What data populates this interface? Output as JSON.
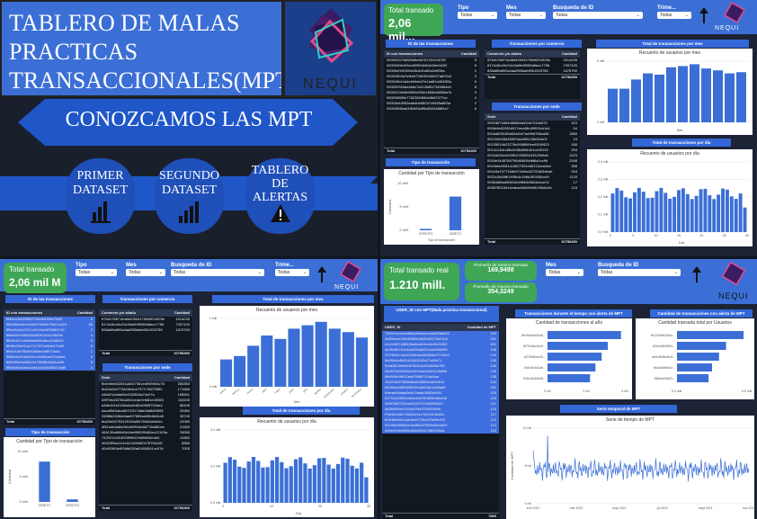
{
  "title_panel": {
    "line1": "TABLERO DE MALAS",
    "line2": "PRACTICAS",
    "line3": "TRANSACCIONALES(MPT)",
    "logo": "NEQUI"
  },
  "menu": {
    "banner": "CONOZCAMOS LAS MPT",
    "btn1_a": "PRIMER",
    "btn1_b": "DATASET",
    "btn2_a": "SEGUNDO",
    "btn2_b": "DATASET",
    "btn3_a": "TABLERO",
    "btn3_b": "DE",
    "btn3_c": "ALERTAS",
    "icon_chart": "bar-chart-icon",
    "icon_alert": "warning-icon"
  },
  "colors": {
    "primary": "#3b6fd6",
    "dark": "#1d2433",
    "green": "#3fa656",
    "nequi": "#e24b8a"
  },
  "d1": {
    "total_label": "Total transado",
    "total_value": "2,06 mil...",
    "slicers": [
      {
        "label": "Tipo",
        "value": "Todas"
      },
      {
        "label": "Mes",
        "value": "Todas"
      },
      {
        "label": "Busqueda de ID",
        "value": "Todas"
      },
      {
        "label": "Trime...",
        "value": "Todas"
      }
    ],
    "logo": "NEQUI",
    "hdr_ids": "ID de las transacciones",
    "hdr_com": "Transacciones por comercio",
    "hdr_tot": "Total de transacciones por mes",
    "ids_head": [
      "ID con transacciones",
      "Cantidad"
    ],
    "ids_rows": [
      "000002373d583d8e5b78722424076f",
      "000004f4e0f3ec839f04e5dc04e2a232",
      "00000e00915f4c0bcbf1e80a2e5f3ec",
      "000015b3a7efebd73b035446207a602c4",
      "000016b14a4e2e6eb47e1ad81a404f52a",
      "00002032dda4b6c7a112b8f47349864ed",
      "00002100e8bf309d200e18b5a45088a7e",
      "000028890e77822824f4bb3b87077ce",
      "00003d44083eab4bb06037c5455a893a",
      "00003f55bad1f64d0a4f5a83448d8f4a7"
    ],
    "ids_vals": [
      "5",
      "8",
      "2",
      "3",
      "6",
      "8",
      "9",
      "4",
      "2",
      "6"
    ],
    "ids_total": [
      "Total",
      "10758450"
    ],
    "com_head": [
      "Comercio y/o aliado",
      "Cantidad"
    ],
    "com_rows": [
      [
        "875d1788716d8d4050247f54887e529e",
        "1614035"
      ],
      [
        "817a18cd3c21e40a9ef9056d6acc7758",
        "7267100"
      ],
      [
        "838a89a892a4aa2f65dafcf0b1503755",
        "1876700"
      ]
    ],
    "com_total": [
      "Total",
      "10758450"
    ],
    "hdr_sede": "Transacciones por sede",
    "sede_head": [
      "Sede",
      "Cantidad"
    ],
    "sede_rows": [
      [
        "0001f6f73d94d6686ee61bb7244e575",
        "423"
      ],
      [
        "000fe4b82290d417eec48b49993cb1d4",
        "94"
      ],
      [
        "000ad839160a62a9cb7ad9b8768ca06",
        "1865"
      ],
      [
        "00122d043d33097abcf06140b0b4e1f",
        "19"
      ],
      [
        "00135014b23776c09880f4ee4904f423",
        "156"
      ],
      [
        "0014c13a1c68c543fc68fe1b1cc05133",
        "293"
      ],
      [
        "0015d20b1b009510330f5243325d9a0",
        "1023"
      ],
      [
        "0016e3445789795d6905fcfbf6a1cc9b",
        "2168"
      ],
      [
        "0019ebe0261a14627524d46113cea3ad",
        "358"
      ],
      [
        "001e9a7077168e072e9ad2276462bfeab",
        "318"
      ],
      [
        "0022c3d49fb1495c4c1fd6c3f0495cc69",
        "1129"
      ],
      [
        "00364dfbad5561bfd4ff40e5604cbca7d",
        "17"
      ],
      [
        "003878015d1cbdead0a345ef5195e6c5e",
        "115"
      ]
    ],
    "sede_total": [
      "Total",
      "10758450"
    ],
    "tipo_hdr": "Tipo de transacción",
    "tipo_title": "Cantidad por Tipo de transacción",
    "tipo_cats": [
      "CREDITO",
      "DEBITO"
    ],
    "tipo_xlabel": "Tipo de transacción",
    "tipo_ylabel": "Cantidad",
    "tipo_ticks": [
      "10 mill.",
      "5 mill.",
      "0 mill."
    ],
    "mes_title": "Recuento de usuarios por mes",
    "mes_xlabel": "Mes",
    "mes_ticks": [
      "5 mill.",
      "0 mill."
    ],
    "dia_hdr": "Total de transacciones por día",
    "dia_title": "Recuento de usuarios por día",
    "dia_xlabel": "Día",
    "dia_ticks": [
      "0,4 mill.",
      "0,3 mill.",
      "0,2 mill.",
      "0,1 mill.",
      "0,0 mill."
    ],
    "dia_xticks": [
      "0",
      "5",
      "10",
      "15",
      "20",
      "25",
      "30"
    ]
  },
  "d2": {
    "total_label": "Total transado",
    "total_value": "2,06 mil M",
    "slicers": [
      {
        "label": "Tipo",
        "value": "Todas"
      },
      {
        "label": "Mes",
        "value": "Todas"
      },
      {
        "label": "Busqueda de ID",
        "value": "Todas"
      },
      {
        "label": "Trime...",
        "value": "Todas"
      }
    ],
    "logo": "NEQUI",
    "hdr_ids": "ID de las transacciones",
    "hdr_com": "Transacciones por comercio",
    "hdr_tot": "Total de transacciones por mes",
    "ids_head": [
      "ID con transacciones",
      "Cantidad"
    ],
    "ids_rows": [
      [
        "fff9eb14e52f9f5274fb46d300c7540",
        "5"
      ],
      [
        "fff9d28cb3ce1b46d728e5d75e21e424",
        "48"
      ],
      [
        "fff9ed1a2e2121c4410dc06358b3767",
        "2"
      ],
      [
        "fffa6e5244982881f80f12a3c23849e",
        "4"
      ],
      [
        "fffb66437cdbd9a6af90c8ec40d6202",
        "6"
      ],
      [
        "fffc5fe33e51a417e72f74e8d9471bf3",
        "5"
      ],
      [
        "fffc9c1b67850043b6be09f572a4a",
        "1"
      ],
      [
        "fffd6040d16a2b0b1d4b5bad376dde6",
        "8"
      ],
      [
        "fff645f5e0e26521e78908b0b04a196",
        "5"
      ],
      [
        "fff5d6d0b6aea1e844c6d45856216af6",
        "4"
      ]
    ],
    "ids_total": [
      "Total",
      "10758450"
    ],
    "com_head": [
      "Comercio y/o aliado",
      "Cantidad"
    ],
    "com_rows": [
      [
        "875d1788716d8d4050247f54887e529e",
        "1614035"
      ],
      [
        "817a18cd3c21e40a9ef9056d6acc7758",
        "7267100"
      ],
      [
        "838a89a892a4aa2f65dafcf0b1503755",
        "1876700"
      ]
    ],
    "com_total": [
      "Total",
      "10758450"
    ],
    "hdr_sede": "Transacciones por sede",
    "sede_head": [
      "Sede",
      "Cantidad"
    ],
    "sede_rows": [
      [
        "f54e0b6b32831a6307361ed959903c76",
        "355350"
      ],
      [
        "8c52a2a9774543b4ee797173007f960",
        "171668"
      ],
      [
        "d4b621a4da50e31f8516a74c07a",
        "165651"
      ],
      [
        "d9f70ea33784a052ceda7efd81e43063",
        "118155"
      ],
      [
        "d46b1b1b2106a4cefd81a9f0f9752ae4",
        "58106"
      ],
      [
        "dacaf5d3aecd5072317b8a0fa8b82853",
        "32984"
      ],
      [
        "345f8d2436ebbaef07655ad49b6b2ea5",
        "28745"
      ],
      [
        "fea20d2075312f133a6f4760d5ab0d4c",
        "22085"
      ],
      [
        "4f51a4b4a6e0b1d89916e68776e880ce",
        "21539"
      ],
      [
        "484130a669d0e1fab9592f9466cc12103a",
        "15065"
      ],
      [
        "7420212c91593f99647ed8fe53e4e0",
        "12850"
      ],
      [
        "40023f5ac1b1e621d05d502787f4d16f",
        "8566"
      ],
      [
        "40d92964e9f2bfb030a61804541cc97d",
        "7005"
      ]
    ],
    "sede_total": [
      "Total",
      "10758450"
    ],
    "tipo_hdr": "Tipo de transacción",
    "tipo_title": "Cantidad por Tipo de transacción",
    "tipo_cats": [
      "DEBITO",
      "CREDITO"
    ],
    "tipo_ylabel": "Cantidad",
    "tipo_ticks": [
      "10 mill.",
      "5 mill.",
      "0 mill."
    ],
    "mes_title": "Recuento de usuarios por mes",
    "mes_xlabel": "Mes",
    "mes_ticks": [
      "1 mill.",
      "0 mill."
    ],
    "mes_cats": [
      "enero",
      "febrero",
      "marzo",
      "abril",
      "mayo",
      "junio",
      "julio",
      "agosto",
      "septiembre",
      "octubre",
      "noviembre"
    ],
    "dia_hdr": "Total de transacciones por día",
    "dia_title": "Recuento de usuarios por día",
    "dia_xlabel": "Día",
    "dia_ticks": [
      "0,4 mill.",
      "0,2 mill.",
      "0,0 mill."
    ],
    "dia_xticks": [
      "0",
      "10",
      "20",
      "30"
    ]
  },
  "d3": {
    "total_label": "Total transado real",
    "total_value": "1.210 mill.",
    "kpi1_label": "Promedio de minimo transado",
    "kpi1_value": "169,9498",
    "kpi2_label": "Promedio de maximo transado",
    "kpi2_value": "354,3249",
    "slicers": [
      {
        "label": "Mes",
        "value": "Todas"
      },
      {
        "label": "Busqueda de ID",
        "value": "Todas"
      }
    ],
    "logo": "NEQUI",
    "hdr1": "USER_ID con MPT(Mala practica transaccional)",
    "hdr2": "Transacciones durante el tiempo con alerta de MPT",
    "hdr3": "Cantidad de transacciones con alerta de MPT",
    "user_head": [
      "USER_ID",
      "Cantidad de MPT"
    ],
    "user_rows": [
      [
        "7500f7eee2ad806d49cbdcb3a5355a092",
        "152"
      ],
      [
        "4c852eae15ed808f1b6d2bb8176a21bd",
        "151"
      ],
      [
        "e4c2d957a3663be6baf10ec6c9b26263",
        "151"
      ],
      [
        "db35c9b7e2d46a02fa8d20c4a3480099",
        "148"
      ],
      [
        "2373b0b7a4a223d64ac564846c27155c1",
        "149"
      ],
      [
        "5b0f5d4ef642d01683105d71cf0b71",
        "139"
      ],
      [
        "53de3b18e89e8786814d92d668c7f0f",
        "142"
      ],
      [
        "0eb5746020b5e19b31a40e0e51d6d66",
        "136"
      ],
      [
        "f5bf90db9f812add7f668741dd4ae",
        "136"
      ],
      [
        "1920166f7385bd5a5c38591ebf9eb3e",
        "134"
      ],
      [
        "b826beeb8938831fe1a6946c1aa5a66",
        "131"
      ],
      [
        "f5aeab94aaa6a4a7faadc3882a40f1",
        "129"
      ],
      [
        "5175444392b4bedd4d790353848ee68",
        "125"
      ],
      [
        "548f78822334a43347e70ef30f53e47",
        "121"
      ],
      [
        "d626d9f9eb1504e29ed7f26326b0b",
        "118"
      ],
      [
        "f76eb2a3fb7185d1e11e7812423bb0c",
        "117"
      ],
      [
        "fe1b6e861fc1abde0972bc979e9fe232",
        "112"
      ],
      [
        "9216f0e89554ecbcff8d37558b4bb3d02",
        "112"
      ],
      [
        "c33ed7e6e609e0d9d93107883230da",
        "110"
      ]
    ],
    "user_total": [
      "Total",
      "7869"
    ],
    "year_title": "Cantidad de transacciones al año",
    "year_cats": [
      "5e1f0a48d2ca5...",
      "6f72bd6c3ce9...",
      "a379b5bee45...",
      "9d1b4e1d2ab...",
      "9cf1a3d33b08..."
    ],
    "year_xticks": [
      "0 mil",
      "2 mil",
      "4 mil"
    ],
    "user_title": "Cantidad transada total por Usuarios",
    "user_cats": [
      "f6142e9b01b6c...",
      "b2ef1d8e95b3...",
      "ae5c5b5ed4c3...",
      "fbc49a5f96e2...",
      "f984f4e5d9f1..."
    ],
    "user_xticks": [
      "0,0 mill.",
      "0,5 mill."
    ],
    "serie_hdr": "Serie temporal de MPT",
    "serie_title": "Serie de tiempo de MPT",
    "serie_ylabel": "Cantidad de MPT",
    "serie_yticks": [
      "10 mil",
      "5 mil",
      "0 mil"
    ],
    "serie_xticks": [
      "ene 2021",
      "mar 2021",
      "may 2021",
      "jul 2021",
      "sept 2021",
      "nov 2021"
    ]
  }
}
